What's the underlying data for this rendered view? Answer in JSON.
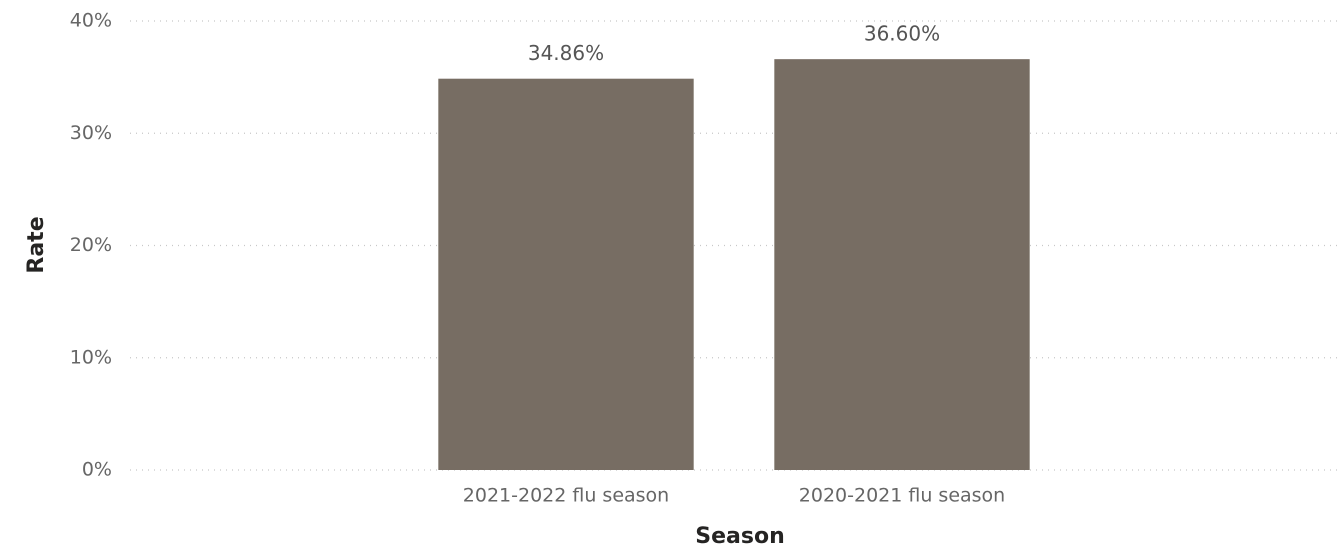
{
  "chart_data": {
    "type": "bar",
    "x_label": "Season",
    "y_label": "Rate",
    "categories": [
      "2021-2022 flu season",
      "2020-2021 flu season"
    ],
    "values": [
      34.86,
      36.6
    ],
    "value_labels": [
      "34.86%",
      "36.60%"
    ],
    "color": "#776d63",
    "ylim": [
      0,
      40
    ],
    "yticks": [
      {
        "value": 0,
        "label": "0%"
      },
      {
        "value": 10,
        "label": "10%"
      },
      {
        "value": 20,
        "label": "20%"
      },
      {
        "value": 30,
        "label": "30%"
      },
      {
        "value": 40,
        "label": "40%"
      }
    ],
    "grid": true
  }
}
